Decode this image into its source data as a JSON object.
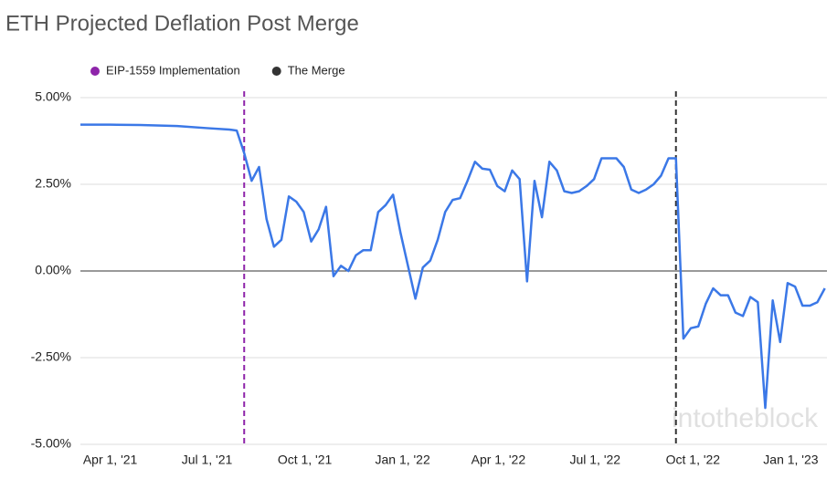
{
  "chart_data": {
    "type": "line",
    "title": "ETH Projected Deflation Post Merge",
    "x": [
      "2021-03-04",
      "2021-04-01",
      "2021-04-29",
      "2021-06-03",
      "2021-07-01",
      "2021-07-22",
      "2021-07-29",
      "2021-08-05",
      "2021-08-12",
      "2021-08-19",
      "2021-08-26",
      "2021-09-02",
      "2021-09-09",
      "2021-09-16",
      "2021-09-23",
      "2021-09-30",
      "2021-10-07",
      "2021-10-14",
      "2021-10-21",
      "2021-10-28",
      "2021-11-04",
      "2021-11-11",
      "2021-11-18",
      "2021-11-25",
      "2021-12-02",
      "2021-12-09",
      "2021-12-16",
      "2021-12-23",
      "2021-12-30",
      "2022-01-13",
      "2022-01-20",
      "2022-01-27",
      "2022-02-03",
      "2022-02-10",
      "2022-02-17",
      "2022-02-24",
      "2022-03-03",
      "2022-03-10",
      "2022-03-17",
      "2022-03-24",
      "2022-03-31",
      "2022-04-07",
      "2022-04-14",
      "2022-04-21",
      "2022-04-28",
      "2022-05-05",
      "2022-05-12",
      "2022-05-19",
      "2022-05-26",
      "2022-06-02",
      "2022-06-09",
      "2022-06-16",
      "2022-06-23",
      "2022-06-30",
      "2022-07-07",
      "2022-07-14",
      "2022-07-21",
      "2022-07-28",
      "2022-08-04",
      "2022-08-11",
      "2022-08-18",
      "2022-08-25",
      "2022-09-01",
      "2022-09-08",
      "2022-09-15",
      "2022-09-22",
      "2022-09-29",
      "2022-10-06",
      "2022-10-13",
      "2022-10-20",
      "2022-10-27",
      "2022-11-03",
      "2022-11-10",
      "2022-11-17",
      "2022-11-24",
      "2022-12-01",
      "2022-12-08",
      "2022-12-15",
      "2022-12-22",
      "2022-12-29",
      "2023-01-05",
      "2023-01-12",
      "2023-01-19",
      "2023-01-26",
      "2023-02-02"
    ],
    "values": [
      4.22,
      4.22,
      4.21,
      4.18,
      4.12,
      4.08,
      4.05,
      3.4,
      2.6,
      3.0,
      1.5,
      0.7,
      0.9,
      2.15,
      2.0,
      1.7,
      0.85,
      1.2,
      1.85,
      -0.15,
      0.15,
      0.0,
      0.45,
      0.6,
      0.6,
      1.7,
      1.9,
      2.2,
      1.1,
      -0.8,
      0.1,
      0.3,
      0.9,
      1.7,
      2.05,
      2.1,
      2.6,
      3.15,
      2.95,
      2.92,
      2.45,
      2.3,
      2.9,
      2.65,
      -0.3,
      2.6,
      1.55,
      3.15,
      2.9,
      2.3,
      2.25,
      2.3,
      2.45,
      2.65,
      3.25,
      3.25,
      3.25,
      3.0,
      2.35,
      2.25,
      2.35,
      2.5,
      2.75,
      3.25,
      3.25,
      -1.95,
      -1.65,
      -1.6,
      -0.95,
      -0.5,
      -0.7,
      -0.7,
      -1.2,
      -1.3,
      -0.75,
      -0.9,
      -3.95,
      -0.85,
      -2.05,
      -0.35,
      -0.45,
      -1.0,
      -1.0,
      -0.9,
      -0.5
    ],
    "color": "#3b78e7",
    "xlim": [
      "2021-03-04",
      "2023-02-04"
    ],
    "xticks": [
      {
        "value": "2021-04-01",
        "label": "Apr 1, '21"
      },
      {
        "value": "2021-07-01",
        "label": "Jul 1, '21"
      },
      {
        "value": "2021-10-01",
        "label": "Oct 1, '21"
      },
      {
        "value": "2022-01-01",
        "label": "Jan 1, '22"
      },
      {
        "value": "2022-04-01",
        "label": "Apr 1, '22"
      },
      {
        "value": "2022-07-01",
        "label": "Jul 1, '22"
      },
      {
        "value": "2022-10-01",
        "label": "Oct 1, '22"
      },
      {
        "value": "2023-01-01",
        "label": "Jan 1, '23"
      }
    ],
    "ylim": [
      -5,
      5
    ],
    "yticks": [
      {
        "value": 5,
        "label": "5.00%"
      },
      {
        "value": 2.5,
        "label": "2.50%"
      },
      {
        "value": 0,
        "label": "0.00%"
      },
      {
        "value": -2.5,
        "label": "-2.50%"
      },
      {
        "value": -5,
        "label": "-5.00%"
      }
    ],
    "grid": true,
    "legend": "top",
    "events": [
      {
        "name": "EIP-1559 Implementation",
        "date": "2021-08-05",
        "color": "#8e24aa"
      },
      {
        "name": "The Merge",
        "date": "2022-09-15",
        "color": "#333333"
      }
    ],
    "watermark": "intotheblock"
  }
}
